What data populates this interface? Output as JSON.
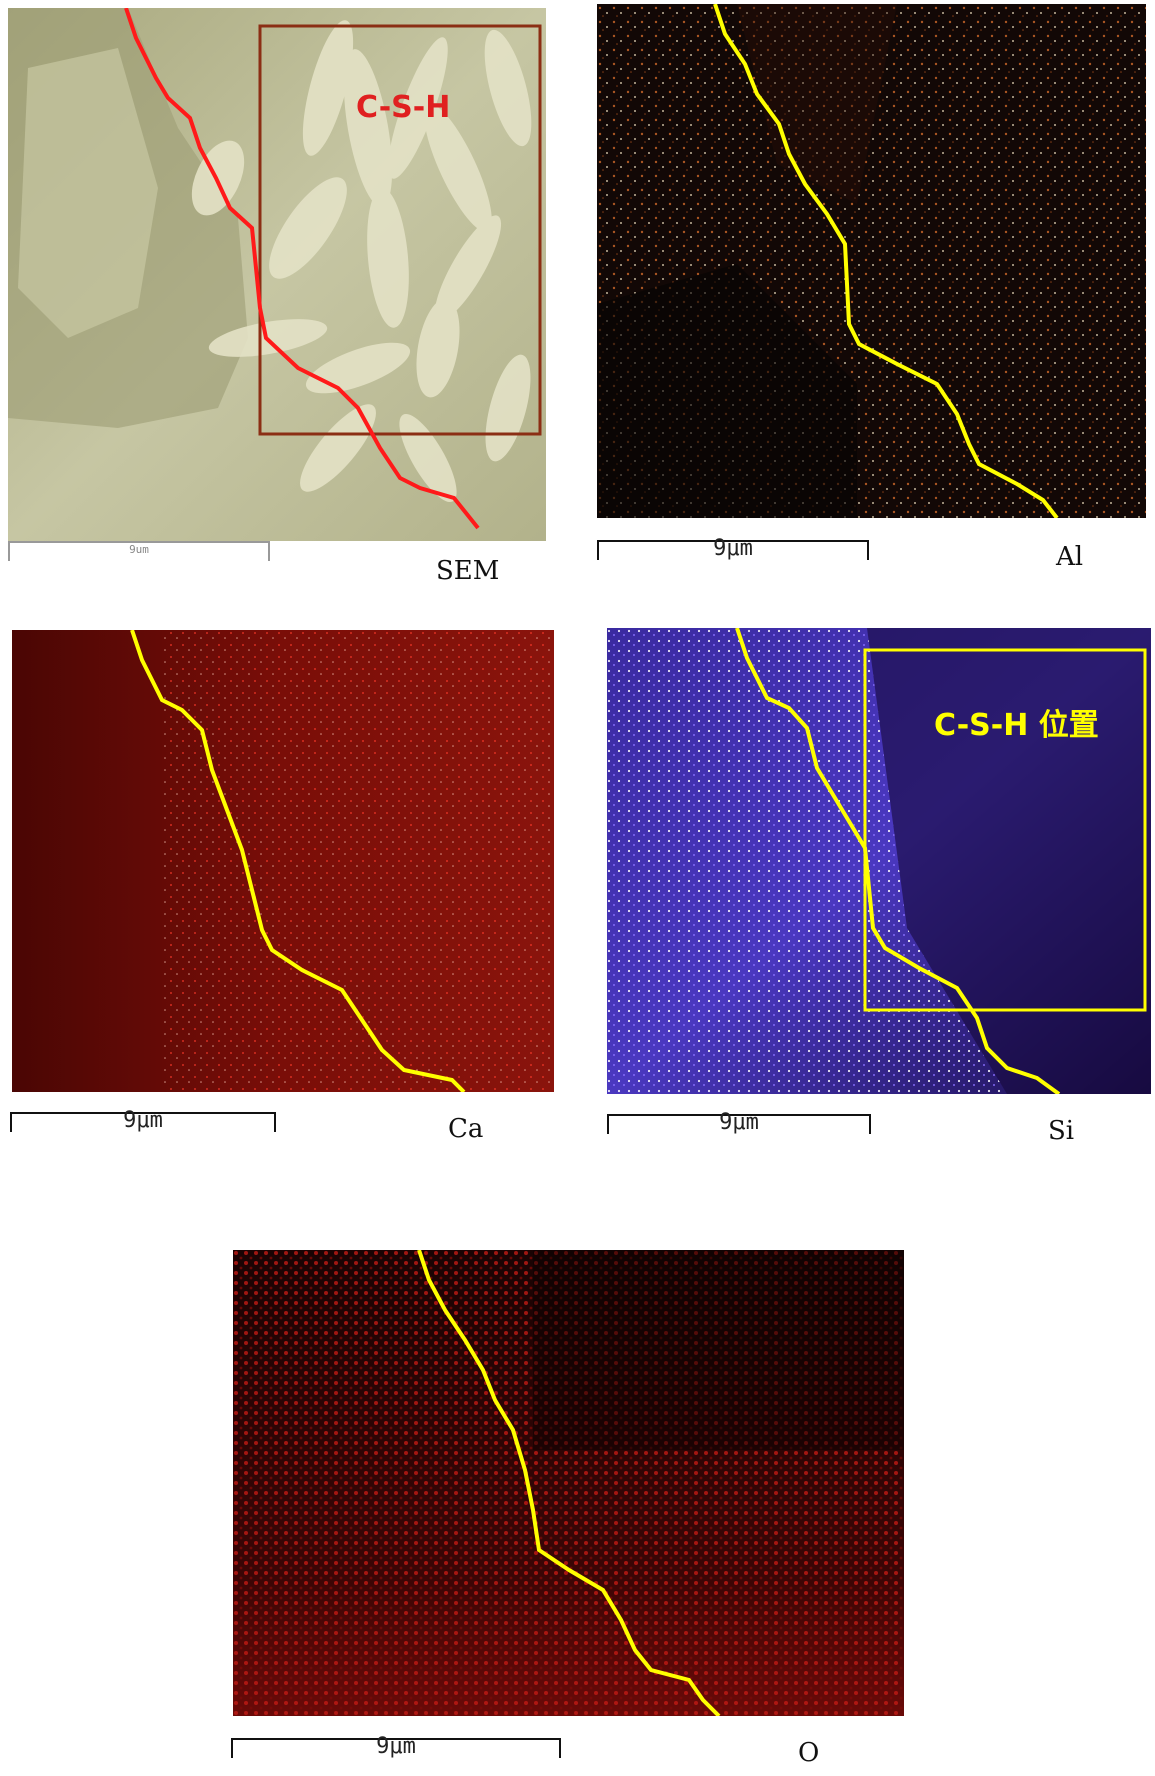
{
  "panels": [
    {
      "id": "sem",
      "label": "SEM",
      "scale_bar": "9um",
      "region_label": "C-S-H",
      "trace_color": "#ff1a1a",
      "box_color": "#8b2e14"
    },
    {
      "id": "al",
      "label": "Al",
      "scale_bar": "9μm",
      "trace_color": "#ffff00"
    },
    {
      "id": "ca",
      "label": "Ca",
      "scale_bar": "9μm",
      "trace_color": "#ffff00"
    },
    {
      "id": "si",
      "label": "Si",
      "scale_bar": "9μm",
      "region_label": "C-S-H 位置",
      "trace_color": "#ffff00",
      "box_color": "#ffff00"
    },
    {
      "id": "o",
      "label": "O",
      "scale_bar": "9μm",
      "trace_color": "#ffff00"
    }
  ],
  "colors": {
    "sem_background": "#b8b892",
    "al_background": "#120806",
    "ca_background": "#5a0a06",
    "si_background": "#1a0e4a",
    "o_background": "#2a0606"
  }
}
